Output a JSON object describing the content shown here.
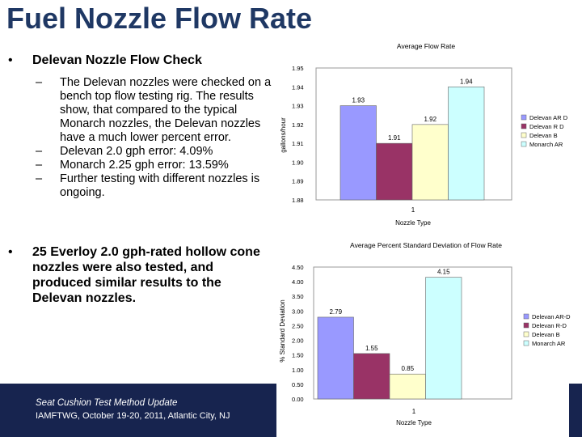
{
  "title": "Fuel Nozzle Flow Rate",
  "bullet1": "Delevan Nozzle Flow Check",
  "sub_items": [
    "The Delevan nozzles were checked on a bench top flow testing rig. The results show, that compared to the typical Monarch nozzles, the Delevan nozzles have a much lower percent error.",
    "Delevan 2.0 gph error: 4.09%",
    "Monarch 2.25 gph error: 13.59%",
    "Further testing with different nozzles is ongoing."
  ],
  "bullet2": "25 Everloy 2.0 gph-rated hollow cone nozzles were also tested, and produced similar results to the Delevan nozzles.",
  "footer": {
    "line1": "Seat Cushion Test Method Update",
    "line2": "IAMFTWG, October 19-20, 2011, Atlantic City, NJ"
  },
  "colors": {
    "title": "#1f3864",
    "footer_bg": "#17244f",
    "series": [
      "#9999ff",
      "#993366",
      "#ffffcc",
      "#ccffff"
    ]
  },
  "chart_data": [
    {
      "type": "bar",
      "title": "Average Flow Rate",
      "xlabel": "Nozzle Type",
      "ylabel": "gallons/hour",
      "categories": [
        "1"
      ],
      "ylim": [
        1.88,
        1.95
      ],
      "yticks": [
        "1.95",
        "1.94",
        "1.93",
        "1.92",
        "1.91",
        "1.90",
        "1.89",
        "1.88"
      ],
      "series": [
        {
          "name": "Delevan AR D",
          "values": [
            1.93
          ],
          "label": "1.93"
        },
        {
          "name": "Delevan R D",
          "values": [
            1.91
          ],
          "label": "1.91"
        },
        {
          "name": "Delevan B",
          "values": [
            1.92
          ],
          "label": "1.92"
        },
        {
          "name": "Monarch AR",
          "values": [
            1.94
          ],
          "label": "1.94"
        }
      ]
    },
    {
      "type": "bar",
      "title": "Average Percent Standard Deviation of Flow Rate",
      "xlabel": "Nozzle Type",
      "ylabel": "% Standard Deviation",
      "categories": [
        "1"
      ],
      "ylim": [
        0,
        4.5
      ],
      "yticks": [
        "4.50",
        "4.00",
        "3.50",
        "3.00",
        "2.50",
        "2.00",
        "1.50",
        "1.00",
        "0.50",
        "0.00"
      ],
      "series": [
        {
          "name": "Delevan AR-D",
          "values": [
            2.79
          ],
          "label": "2.79"
        },
        {
          "name": "Delevan R-D",
          "values": [
            1.55
          ],
          "label": "1.55"
        },
        {
          "name": "Delevan B",
          "values": [
            0.85
          ],
          "label": "0.85"
        },
        {
          "name": "Monarch AR",
          "values": [
            4.15
          ],
          "label": "4.15"
        }
      ]
    }
  ]
}
